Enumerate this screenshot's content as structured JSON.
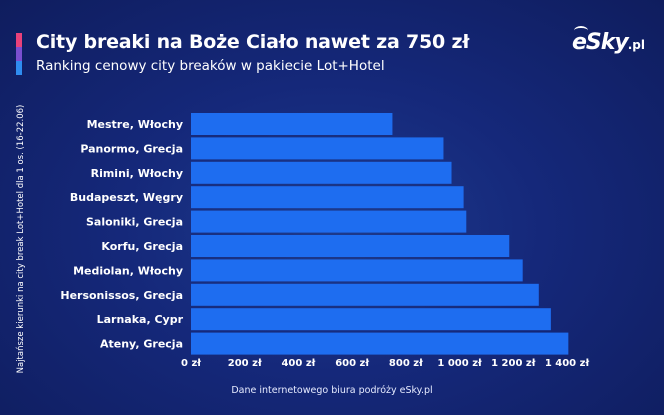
{
  "colors": {
    "background": "#15287a",
    "bar": "#1e6df0",
    "accent_pink": "#e8417a",
    "accent_purple": "#7a4fd0",
    "accent_blue": "#2f8df0"
  },
  "logo": {
    "main": "eSky",
    "suffix": ".pl"
  },
  "source": "Dane internetowego biura podróży eSky.pl",
  "chart_data": {
    "type": "bar",
    "orientation": "horizontal",
    "title": "City breaki na Boże Ciało nawet za 750 zł",
    "subtitle": "Ranking cenowy city breaków w pakiecie Lot+Hotel",
    "ylabel": "Najtańsze kierunki na city break Lot+Hotel dla 1 os. (16-22.06)",
    "xlabel": "",
    "categories": [
      "Mestre, Włochy",
      "Panormo, Grecja",
      "Rimini, Włochy",
      "Budapeszt, Węgry",
      "Saloniki, Grecja",
      "Korfu, Grecja",
      "Mediolan, Włochy",
      "Hersonissos, Grecja",
      "Larnaka, Cypr",
      "Ateny, Grecja"
    ],
    "values": [
      750,
      940,
      970,
      1015,
      1025,
      1185,
      1235,
      1295,
      1340,
      1405
    ],
    "xlim": [
      0,
      1400
    ],
    "xticks": [
      0,
      200,
      400,
      600,
      800,
      1000,
      1200,
      1400
    ],
    "xtick_labels": [
      "0 zł",
      "200 zł",
      "400 zł",
      "600 zł",
      "800 zł",
      "1 000 zł",
      "1 200 zł",
      "1 400 zł"
    ],
    "grid": false,
    "legend": "none"
  }
}
